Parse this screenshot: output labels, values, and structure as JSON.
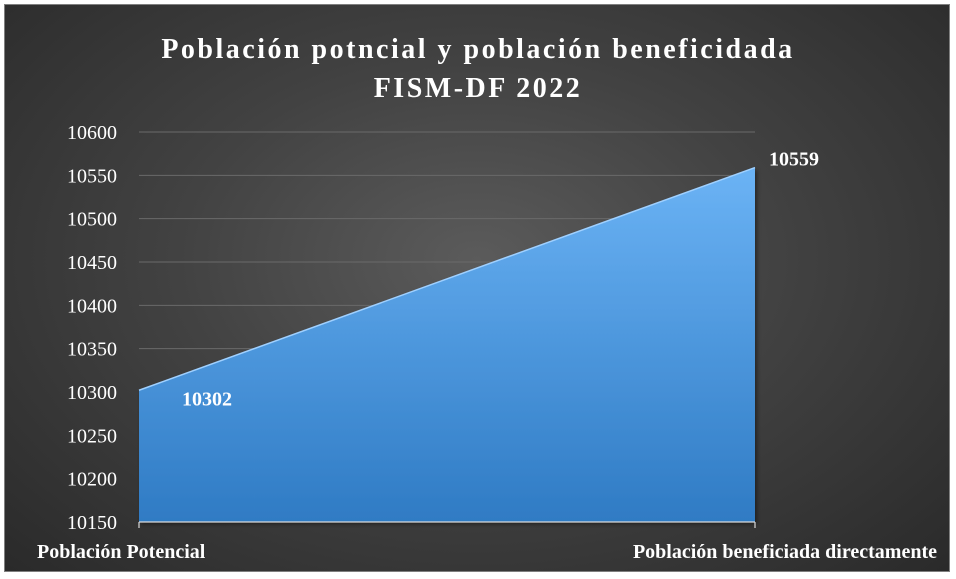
{
  "chart_data": {
    "type": "area",
    "title": "Población potncial y población beneficidada",
    "subtitle": "FISM-DF 2022",
    "categories": [
      "Población Potencial",
      "Población beneficiada directamente"
    ],
    "values": [
      10302,
      10559
    ],
    "data_labels": [
      "10302",
      "10559"
    ],
    "ylim": [
      10150,
      10600
    ],
    "yticks": [
      10150,
      10200,
      10250,
      10300,
      10350,
      10400,
      10450,
      10500,
      10550,
      10600
    ],
    "ytick_labels": [
      "10150",
      "10200",
      "10250",
      "10300",
      "10350",
      "10400",
      "10450",
      "10500",
      "10550",
      "10600"
    ],
    "grid": true,
    "legend": "none",
    "colors": {
      "area_top": "#6bb3f5",
      "area_bottom": "#2f7bc4",
      "background": "#3a3a3a",
      "text": "#ffffff"
    }
  }
}
